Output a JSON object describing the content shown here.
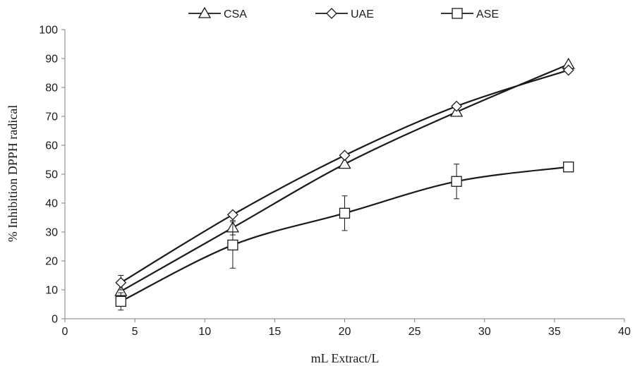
{
  "chart_data": {
    "type": "line",
    "title": "",
    "xlabel": "mL Extract/L",
    "ylabel": "% Inhibition DPPH radical",
    "xlim": [
      0,
      40
    ],
    "ylim": [
      0,
      100
    ],
    "x_ticks": [
      0,
      5,
      10,
      15,
      20,
      25,
      30,
      35,
      40
    ],
    "y_ticks": [
      0,
      10,
      20,
      30,
      40,
      50,
      60,
      70,
      80,
      90,
      100
    ],
    "grid": false,
    "legend_position": "top",
    "x": [
      4,
      12,
      20,
      28,
      36
    ],
    "series": [
      {
        "name": "CSA",
        "marker": "triangle",
        "values": [
          9.5,
          31.5,
          53.5,
          71.5,
          88
        ],
        "error": [
          null,
          2.5,
          null,
          null,
          null
        ]
      },
      {
        "name": "UAE",
        "marker": "diamond",
        "values": [
          12.5,
          36,
          56.5,
          73.5,
          86
        ],
        "error": [
          2.5,
          null,
          null,
          null,
          null
        ]
      },
      {
        "name": "ASE",
        "marker": "square",
        "values": [
          6,
          25.5,
          36.5,
          47.5,
          52.5
        ],
        "error": [
          3,
          8,
          6,
          6,
          null
        ]
      }
    ]
  }
}
